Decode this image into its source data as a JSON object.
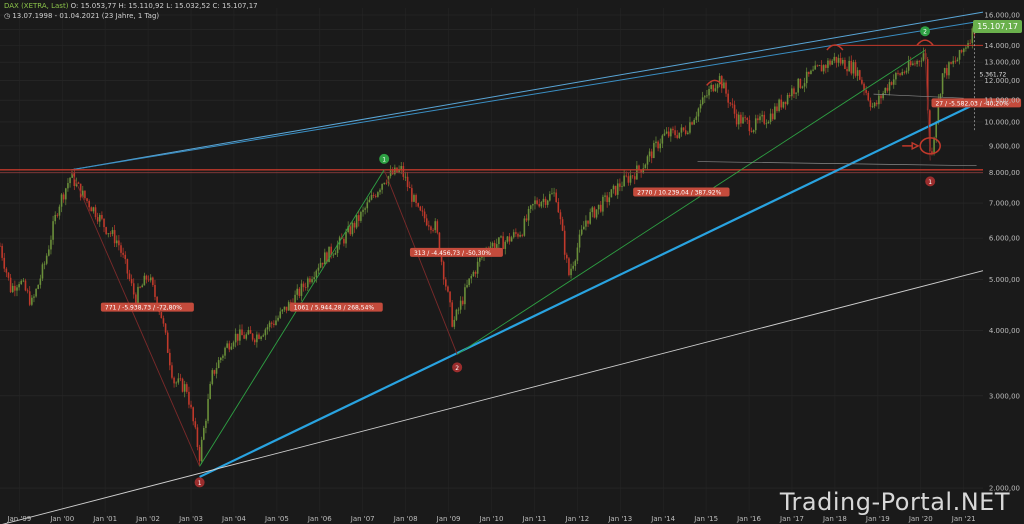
{
  "header": {
    "symbol": "DAX (XETRA, Last)",
    "ohlc": "O: 15.053,77  H: 15.110,92  L: 15.032,52  C: 15.107,17",
    "meta_range": "13.07.1998 - 01.04.2021",
    "meta_info": "(23 Jahre, 1 Tag)"
  },
  "last_price": "15.107,17",
  "watermark": "Trading-Portal.NET",
  "colors": {
    "background": "#1a1a1a",
    "up_candle": "#6a8f3a",
    "down_candle": "#c0392b",
    "red_line": "#c0392b",
    "blue_line": "#29a3e0",
    "green_line": "#2ea043",
    "white_line": "#d0d0d0",
    "label_bg": "#c44b3c"
  },
  "chart_data": {
    "type": "line",
    "scale": "log",
    "ylim": [
      1800,
      16500
    ],
    "x_tick_labels": [
      "Jan '99",
      "Jan '00",
      "Jan '01",
      "Jan '02",
      "Jan '03",
      "Jan '04",
      "Jan '05",
      "Jan '06",
      "Jan '07",
      "Jan '08",
      "Jan '09",
      "Jan '10",
      "Jan '11",
      "Jan '12",
      "Jan '13",
      "Jan '14",
      "Jan '15",
      "Jan '16",
      "Jan '17",
      "Jan '18",
      "Jan '19",
      "Jan '20",
      "Jan '21"
    ],
    "y_tick_labels": [
      "16.000,00",
      "15.000,00",
      "14.000,00",
      "13.000,00",
      "12.000,00",
      "11.000,00",
      "10.000,00",
      "9.000,00",
      "8.000,00",
      "7.000,00",
      "6.000,00",
      "5.000,00",
      "4.000,00",
      "3.000,00",
      "2.000,00"
    ],
    "y_tick_values": [
      16000,
      15000,
      14000,
      13000,
      12000,
      11000,
      10000,
      9000,
      8000,
      7000,
      6000,
      5000,
      4000,
      3000,
      2000
    ],
    "series": [
      {
        "x": [
          1998.55,
          1998.8,
          1999.0,
          1999.3,
          1999.6,
          1999.9,
          2000.2,
          2000.5,
          2000.8,
          2001.0,
          2001.3,
          2001.7,
          2002.0,
          2002.3,
          2002.6,
          2002.9,
          2003.2,
          2003.5,
          2003.8,
          2004.0,
          2004.5,
          2005.0,
          2005.5,
          2006.0,
          2006.5,
          2007.0,
          2007.5,
          2007.9,
          2008.3,
          2008.7,
          2009.1,
          2009.5,
          2009.9,
          2010.3,
          2010.7,
          2011.0,
          2011.5,
          2011.8,
          2012.2,
          2012.6,
          2013.0,
          2013.5,
          2014.0,
          2014.5,
          2015.0,
          2015.3,
          2015.7,
          2016.1,
          2016.5,
          2017.0,
          2017.5,
          2018.0,
          2018.5,
          2018.9,
          2019.3,
          2019.9,
          2020.1,
          2020.22,
          2020.5,
          2020.9,
          2021.25
        ],
        "y": [
          5800,
          4800,
          5000,
          4500,
          5400,
          6900,
          7900,
          7200,
          6700,
          6300,
          5900,
          4600,
          5100,
          4300,
          3200,
          3100,
          2300,
          3300,
          3700,
          3900,
          3900,
          4200,
          4700,
          5400,
          5900,
          6700,
          7800,
          8100,
          6700,
          6300,
          4100,
          5000,
          5800,
          5900,
          6200,
          7000,
          7300,
          5100,
          6500,
          7000,
          7600,
          8200,
          9400,
          9600,
          11200,
          12200,
          10200,
          9800,
          10300,
          11500,
          12400,
          13200,
          12600,
          10600,
          12000,
          13000,
          13700,
          8441,
          12300,
          13300,
          15107
        ]
      }
    ],
    "annotations": [
      "771 / -5.938,73 / -72,80%",
      "1061 / 5.944,28 / 268,54%",
      "313 / -4.456,73 / -50,30%",
      "2770 / 10.239,04 / 387,92%",
      "27 / -5.582,03 / -40,20%",
      "5.361,72"
    ],
    "pivot_labels": [
      "1",
      "2",
      "1",
      "2",
      "1",
      "2",
      "1"
    ]
  }
}
